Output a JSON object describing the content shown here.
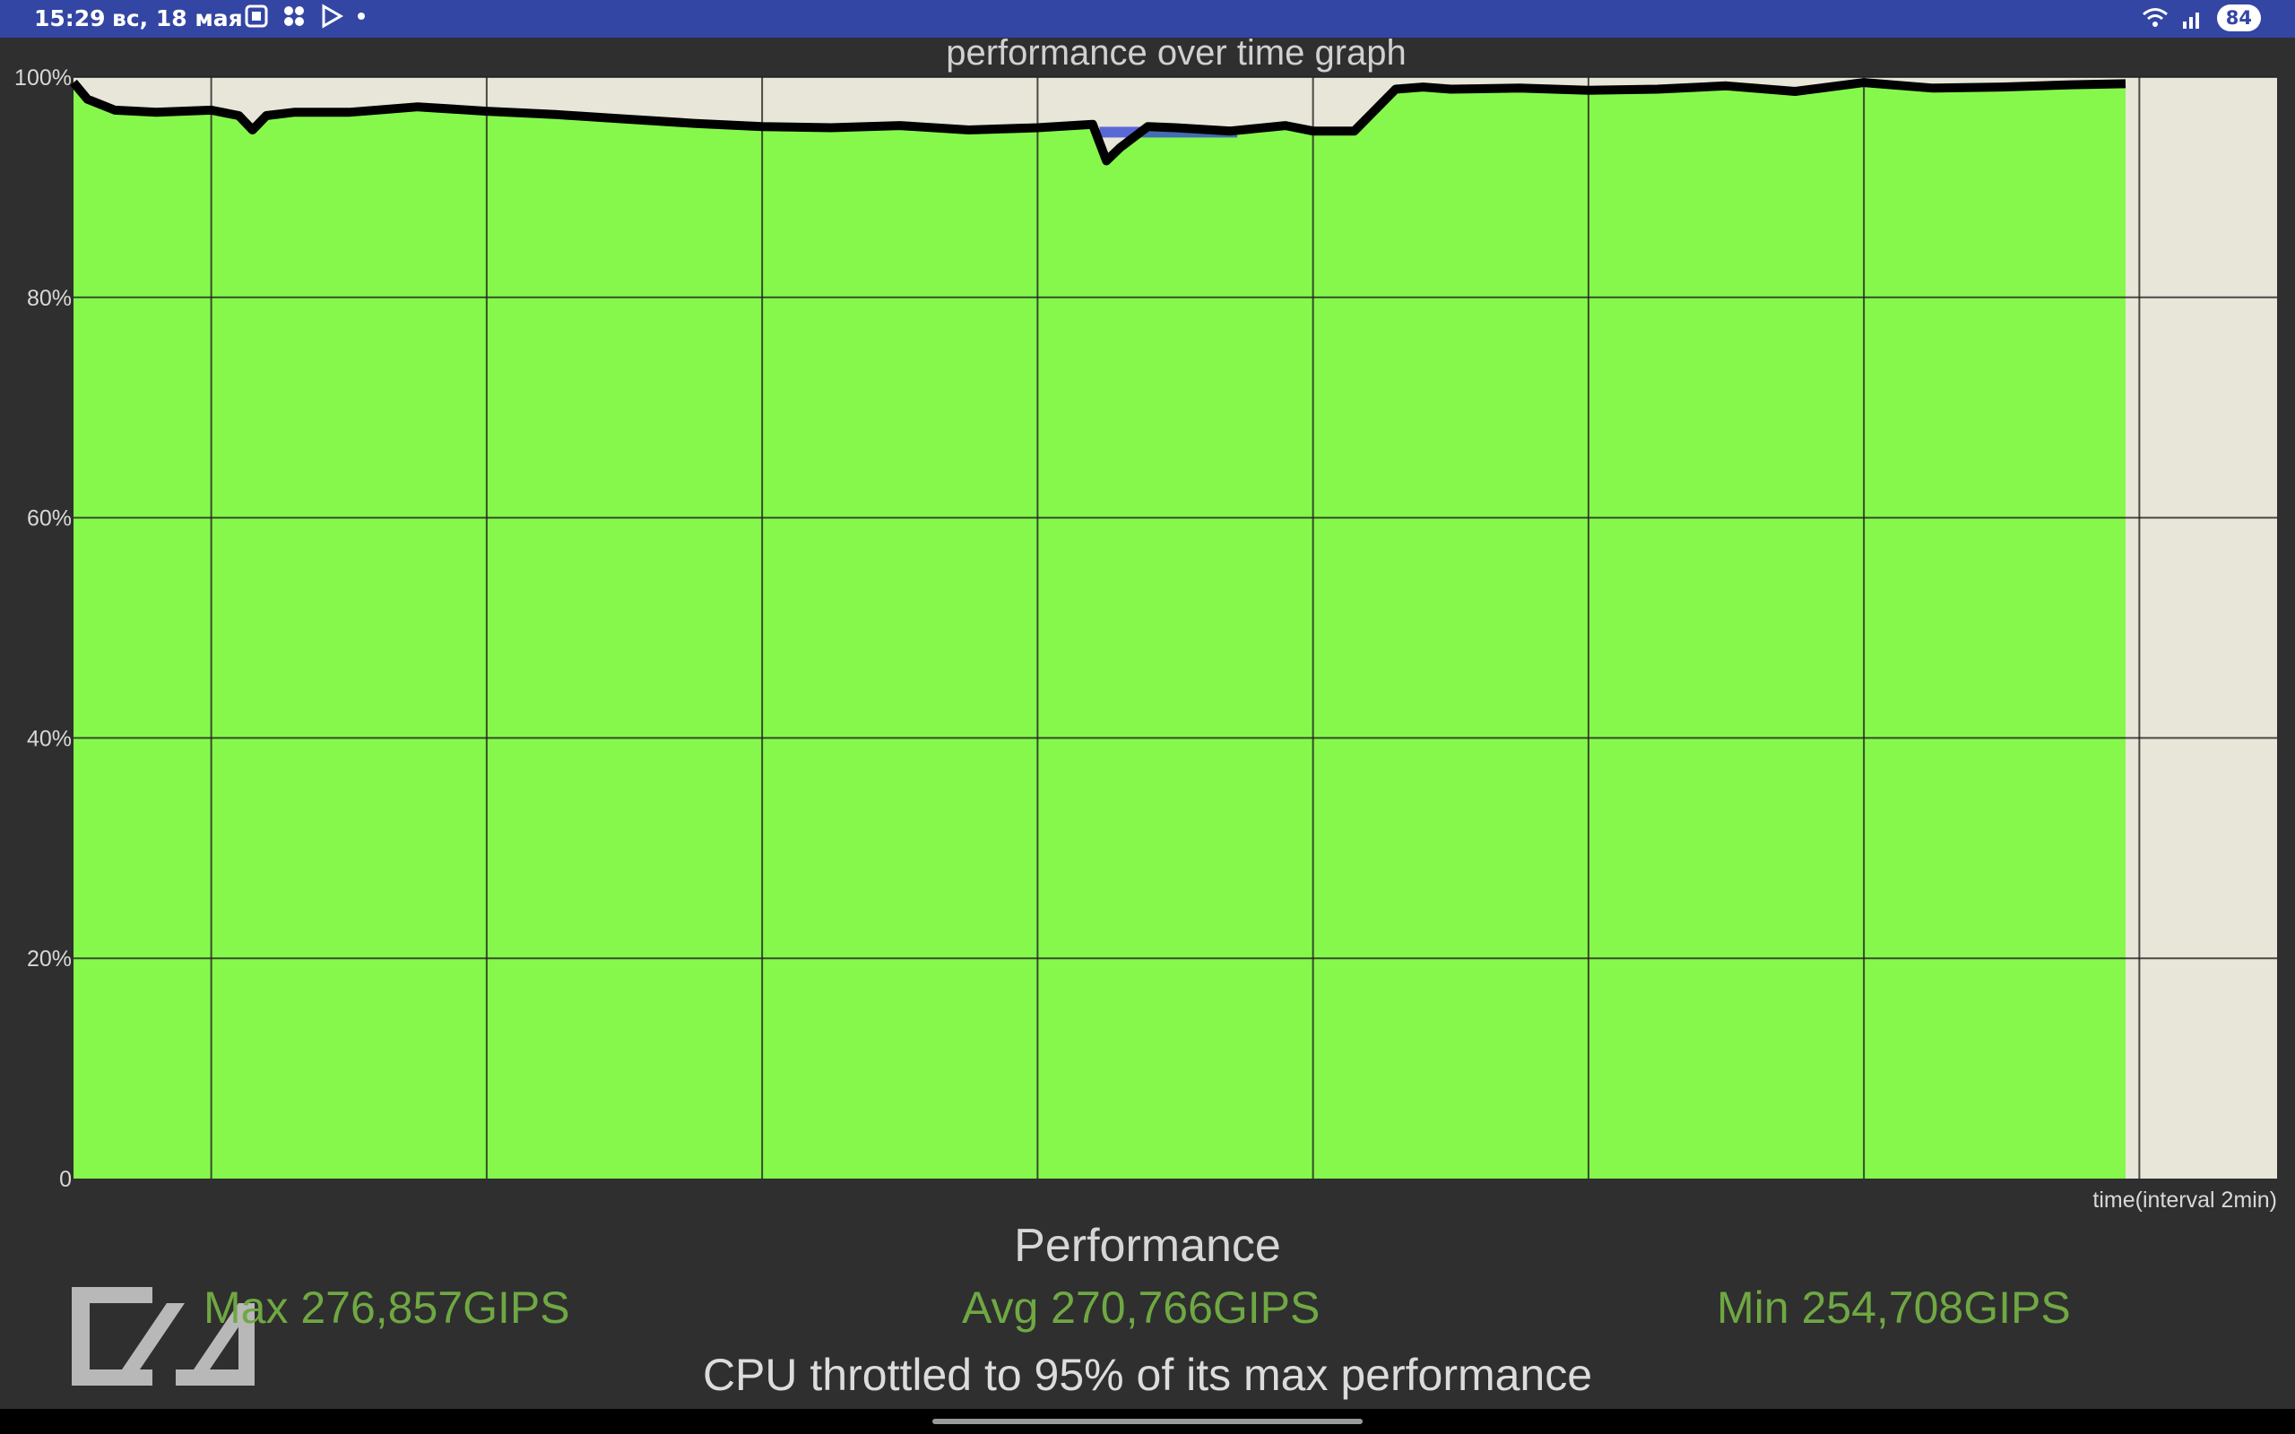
{
  "status_bar": {
    "time": "15:29",
    "date": "вс, 18 мая",
    "icons": [
      "screenshot-icon",
      "apps-icon",
      "play-store-icon",
      "dot-icon"
    ],
    "battery": "84",
    "right_icons": [
      "wifi-icon",
      "signal-icon",
      "battery-icon"
    ]
  },
  "chart_data": {
    "type": "area",
    "title": "performance over time graph",
    "xlabel": "time(interval 2min)",
    "ylabel": "",
    "ylim": [
      0,
      100
    ],
    "xlim": [
      0,
      16
    ],
    "ytick_labels": [
      "0",
      "20%",
      "40%",
      "60%",
      "80%",
      "100%"
    ],
    "ytick_values": [
      0,
      20,
      40,
      60,
      80,
      100
    ],
    "grid": true,
    "colors": {
      "fill": "#86f84c",
      "line": "#000000",
      "plot_background": "#e8e6d8",
      "highlight": "#2b3ed6"
    },
    "series": [
      {
        "x": [
          0,
          0.1,
          0.3,
          0.6,
          1.0,
          1.2,
          1.3,
          1.4,
          1.6,
          2.0,
          2.5,
          3.0,
          3.5,
          4.0,
          4.5,
          5.0,
          5.5,
          6.0,
          6.5,
          7.0,
          7.4,
          7.5,
          7.6,
          7.8,
          8.0,
          8.4,
          8.8,
          9.0,
          9.3,
          9.6,
          9.8,
          10.0,
          10.5,
          11.0,
          11.5,
          12.0,
          12.5,
          13.0,
          13.5,
          14.0,
          14.5,
          14.9
        ],
        "y": [
          99.5,
          98,
          97,
          96.8,
          97,
          96.5,
          95.2,
          96.5,
          96.8,
          96.8,
          97.3,
          96.9,
          96.6,
          96.2,
          95.8,
          95.5,
          95.4,
          95.6,
          95.2,
          95.4,
          95.7,
          92.4,
          93.6,
          95.5,
          95.4,
          95.1,
          95.6,
          95.1,
          95.1,
          98.9,
          99.1,
          98.9,
          99.0,
          98.8,
          98.9,
          99.2,
          98.7,
          99.5,
          99.0,
          99.1,
          99.3,
          99.4
        ]
      }
    ],
    "annotations": [
      {
        "type": "throttle-band",
        "x_range": [
          7.45,
          8.45
        ],
        "y": 95
      }
    ]
  },
  "summary": {
    "title": "Performance",
    "max": "Max 276,857GIPS",
    "avg": "Avg 270,766GIPS",
    "min": "Min 254,708GIPS",
    "throttle": "CPU throttled to 95% of its max performance"
  }
}
